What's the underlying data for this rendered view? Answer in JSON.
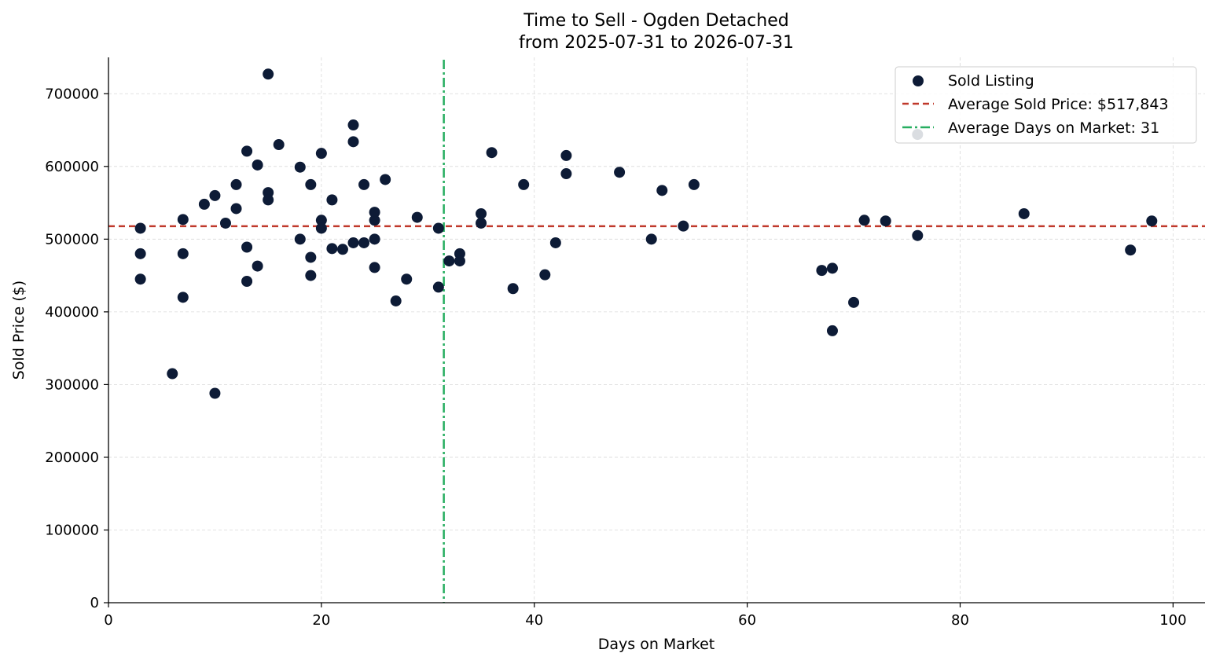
{
  "chart_data": {
    "type": "scatter",
    "title": "Time to Sell - Ogden Detached",
    "subtitle": "from 2025-07-31 to 2026-07-31",
    "xlabel": "Days on Market",
    "ylabel": "Sold Price ($)",
    "xlim": [
      0,
      103
    ],
    "ylim": [
      0,
      750000
    ],
    "xticks": [
      0,
      20,
      40,
      60,
      80,
      100
    ],
    "yticks": [
      0,
      100000,
      200000,
      300000,
      400000,
      500000,
      600000,
      700000
    ],
    "grid": true,
    "legend_position": "top-right",
    "colors": {
      "points": "#0d1b36",
      "avg_price_line": "#c0392b",
      "avg_days_line": "#27ae60",
      "grid": "#d9d9d9"
    },
    "series": [
      {
        "name": "Sold Listing",
        "points": [
          [
            3,
            515000
          ],
          [
            3,
            480000
          ],
          [
            3,
            445000
          ],
          [
            6,
            315000
          ],
          [
            7,
            527000
          ],
          [
            7,
            480000
          ],
          [
            7,
            420000
          ],
          [
            9,
            548000
          ],
          [
            10,
            560000
          ],
          [
            10,
            288000
          ],
          [
            11,
            522000
          ],
          [
            12,
            575000
          ],
          [
            12,
            542000
          ],
          [
            13,
            621000
          ],
          [
            13,
            489000
          ],
          [
            13,
            442000
          ],
          [
            14,
            602000
          ],
          [
            14,
            463000
          ],
          [
            15,
            727000
          ],
          [
            15,
            564000
          ],
          [
            15,
            554000
          ],
          [
            16,
            630000
          ],
          [
            18,
            599000
          ],
          [
            18,
            500000
          ],
          [
            19,
            575000
          ],
          [
            19,
            475000
          ],
          [
            19,
            450000
          ],
          [
            20,
            618000
          ],
          [
            20,
            526000
          ],
          [
            20,
            515000
          ],
          [
            21,
            554000
          ],
          [
            21,
            487000
          ],
          [
            22,
            486000
          ],
          [
            23,
            657000
          ],
          [
            23,
            634000
          ],
          [
            23,
            495000
          ],
          [
            24,
            575000
          ],
          [
            24,
            495000
          ],
          [
            25,
            537000
          ],
          [
            25,
            526000
          ],
          [
            25,
            500000
          ],
          [
            25,
            461000
          ],
          [
            26,
            582000
          ],
          [
            27,
            415000
          ],
          [
            28,
            445000
          ],
          [
            29,
            530000
          ],
          [
            31,
            515000
          ],
          [
            31,
            434000
          ],
          [
            32,
            470000
          ],
          [
            33,
            480000
          ],
          [
            33,
            470000
          ],
          [
            35,
            535000
          ],
          [
            35,
            522000
          ],
          [
            36,
            619000
          ],
          [
            38,
            432000
          ],
          [
            39,
            575000
          ],
          [
            41,
            451000
          ],
          [
            42,
            495000
          ],
          [
            43,
            615000
          ],
          [
            43,
            590000
          ],
          [
            48,
            592000
          ],
          [
            51,
            500000
          ],
          [
            52,
            567000
          ],
          [
            54,
            518000
          ],
          [
            55,
            575000
          ],
          [
            67,
            457000
          ],
          [
            68,
            460000
          ],
          [
            68,
            374000
          ],
          [
            70,
            413000
          ],
          [
            71,
            526000
          ],
          [
            73,
            525000
          ],
          [
            76,
            644000
          ],
          [
            76,
            505000
          ],
          [
            86,
            535000
          ],
          [
            96,
            485000
          ],
          [
            98,
            525000
          ]
        ]
      }
    ],
    "reference_lines": {
      "avg_price": {
        "label": "Average Sold Price: $517,843",
        "value": 517843
      },
      "avg_days": {
        "label": "Average Days on Market: 31",
        "value": 31.5
      }
    }
  }
}
